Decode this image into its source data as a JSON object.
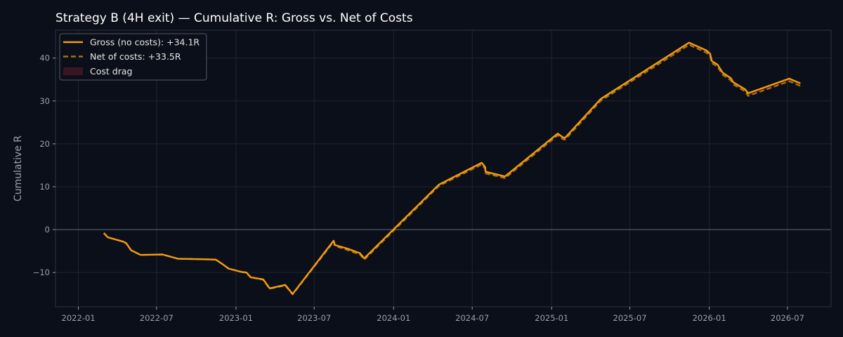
{
  "chart_data": {
    "type": "line",
    "title": "Strategy B (4H exit) — Cumulative R: Gross vs. Net of Costs",
    "xlabel": "",
    "ylabel": "Cumulative R",
    "xlim": [
      "2021-11-09",
      "2026-10-10"
    ],
    "ylim": [
      -18,
      46.5
    ],
    "x_ticks": [
      "2022-01",
      "2022-07",
      "2023-01",
      "2023-07",
      "2024-01",
      "2024-07",
      "2025-01",
      "2025-07",
      "2026-01",
      "2026-07"
    ],
    "y_ticks": [
      -10,
      0,
      10,
      20,
      30,
      40
    ],
    "grid": true,
    "legend_position": "upper-left",
    "colors": {
      "background": "#0b0f19",
      "gross": "#f39c12",
      "net": "#a8720e",
      "cost_drag": "#5a1a2a",
      "zero_line": "#5a606c"
    },
    "series": [
      {
        "name": "Gross (no costs): +34.1R",
        "style": "solid",
        "points": [
          [
            "2022-03-01",
            -0.8
          ],
          [
            "2022-03-10",
            -1.8
          ],
          [
            "2022-04-15",
            -2.8
          ],
          [
            "2022-04-22",
            -3.2
          ],
          [
            "2022-05-03",
            -4.8
          ],
          [
            "2022-05-25",
            -5.9
          ],
          [
            "2022-07-15",
            -5.8
          ],
          [
            "2022-08-20",
            -6.8
          ],
          [
            "2022-10-15",
            -6.9
          ],
          [
            "2022-11-15",
            -7.0
          ],
          [
            "2022-11-30",
            -8.0
          ],
          [
            "2022-12-15",
            -9.1
          ],
          [
            "2023-01-15",
            -9.9
          ],
          [
            "2023-01-25",
            -10.0
          ],
          [
            "2023-02-04",
            -11.1
          ],
          [
            "2023-03-05",
            -11.6
          ],
          [
            "2023-03-20",
            -13.7
          ],
          [
            "2023-04-25",
            -12.9
          ],
          [
            "2023-05-12",
            -15.0
          ],
          [
            "2023-08-15",
            -2.6
          ],
          [
            "2023-08-18",
            -3.6
          ],
          [
            "2023-09-15",
            -4.4
          ],
          [
            "2023-10-15",
            -5.5
          ],
          [
            "2023-10-25",
            -6.7
          ],
          [
            "2024-04-15",
            10.5
          ],
          [
            "2024-07-23",
            15.6
          ],
          [
            "2024-07-31",
            14.6
          ],
          [
            "2024-08-01",
            13.5
          ],
          [
            "2024-09-15",
            12.4
          ],
          [
            "2025-01-15",
            22.4
          ],
          [
            "2025-01-27",
            21.5
          ],
          [
            "2025-02-01",
            21.4
          ],
          [
            "2025-04-25",
            30.5
          ],
          [
            "2025-11-15",
            43.6
          ],
          [
            "2025-12-25",
            41.8
          ],
          [
            "2026-01-03",
            41.0
          ],
          [
            "2026-01-07",
            39.3
          ],
          [
            "2026-01-20",
            38.5
          ],
          [
            "2026-02-01",
            36.6
          ],
          [
            "2026-02-20",
            35.3
          ],
          [
            "2026-02-25",
            34.4
          ],
          [
            "2026-03-25",
            32.7
          ],
          [
            "2026-04-01",
            31.8
          ],
          [
            "2026-07-05",
            35.2
          ],
          [
            "2026-07-31",
            34.1
          ]
        ]
      },
      {
        "name": "Net of costs: +33.5R",
        "style": "dashed",
        "points": [
          [
            "2022-03-01",
            -0.8
          ],
          [
            "2022-03-10",
            -1.8
          ],
          [
            "2022-04-15",
            -2.8
          ],
          [
            "2022-04-22",
            -3.2
          ],
          [
            "2022-05-03",
            -4.8
          ],
          [
            "2022-05-25",
            -5.9
          ],
          [
            "2022-07-15",
            -5.8
          ],
          [
            "2022-08-20",
            -6.8
          ],
          [
            "2022-10-15",
            -6.9
          ],
          [
            "2022-11-15",
            -7.0
          ],
          [
            "2022-11-30",
            -8.0
          ],
          [
            "2022-12-15",
            -9.1
          ],
          [
            "2023-01-15",
            -9.9
          ],
          [
            "2023-01-25",
            -10.0
          ],
          [
            "2023-02-04",
            -11.1
          ],
          [
            "2023-03-05",
            -11.7
          ],
          [
            "2023-03-20",
            -13.8
          ],
          [
            "2023-04-25",
            -13.0
          ],
          [
            "2023-05-12",
            -15.1
          ],
          [
            "2023-08-15",
            -2.8
          ],
          [
            "2023-08-18",
            -3.8
          ],
          [
            "2023-09-15",
            -4.7
          ],
          [
            "2023-10-15",
            -5.8
          ],
          [
            "2023-10-25",
            -7.0
          ],
          [
            "2024-04-15",
            10.2
          ],
          [
            "2024-07-23",
            15.2
          ],
          [
            "2024-07-31",
            14.2
          ],
          [
            "2024-08-01",
            13.1
          ],
          [
            "2024-09-15",
            12.0
          ],
          [
            "2025-01-15",
            22.0
          ],
          [
            "2025-01-27",
            21.1
          ],
          [
            "2025-02-01",
            21.0
          ],
          [
            "2025-04-25",
            30.1
          ],
          [
            "2025-11-15",
            43.1
          ],
          [
            "2025-12-25",
            41.3
          ],
          [
            "2026-01-03",
            40.5
          ],
          [
            "2026-01-07",
            38.8
          ],
          [
            "2026-01-20",
            38.0
          ],
          [
            "2026-02-01",
            36.1
          ],
          [
            "2026-02-20",
            34.8
          ],
          [
            "2026-02-25",
            33.9
          ],
          [
            "2026-03-25",
            32.2
          ],
          [
            "2026-04-01",
            31.2
          ],
          [
            "2026-07-05",
            34.6
          ],
          [
            "2026-07-31",
            33.5
          ]
        ]
      }
    ],
    "fill_label": "Cost drag"
  }
}
